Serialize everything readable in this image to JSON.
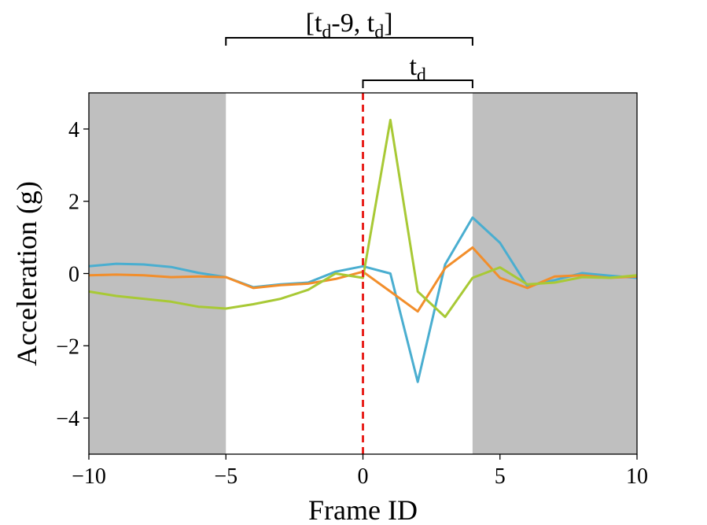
{
  "chart_data": {
    "type": "line",
    "xlabel": "Frame ID",
    "ylabel": "Acceleration (g)",
    "xlim": [
      -10,
      10
    ],
    "ylim": [
      -5,
      5
    ],
    "xticks": [
      -10,
      -5,
      0,
      5,
      10
    ],
    "yticks": [
      -4,
      -2,
      0,
      2,
      4
    ],
    "tick_labels_x": [
      "−10",
      "−5",
      "0",
      "5",
      "10"
    ],
    "tick_labels_y": [
      "−4",
      "−2",
      "0",
      "2",
      "4"
    ],
    "grid": false,
    "shaded_regions": [
      {
        "from": -10,
        "to": -5,
        "color": "#bfbfbf"
      },
      {
        "from": 4,
        "to": 10,
        "color": "#bfbfbf"
      }
    ],
    "vline": {
      "x": 0,
      "color": "#e8231f",
      "style": "dashed"
    },
    "brackets": [
      {
        "from": -5,
        "to": 4,
        "label_main": "[t",
        "label_sub": "d",
        "label_mid": "-9, t",
        "label_sub2": "d",
        "label_end": "]"
      },
      {
        "from": 0,
        "to": 4,
        "label_main": "t",
        "label_sub": "d",
        "label_mid": "",
        "label_sub2": "",
        "label_end": ""
      }
    ],
    "x": [
      -10,
      -9,
      -8,
      -7,
      -6,
      -5,
      -4,
      -3,
      -2,
      -1,
      0,
      1,
      2,
      3,
      4,
      5,
      6,
      7,
      8,
      9,
      10
    ],
    "series": [
      {
        "color": "#4aaed0",
        "values": [
          0.2,
          0.27,
          0.25,
          0.18,
          0.02,
          -0.1,
          -0.38,
          -0.3,
          -0.25,
          0.05,
          0.2,
          0.0,
          -3.0,
          0.25,
          1.55,
          0.85,
          -0.35,
          -0.18,
          0.01,
          -0.06,
          -0.12
        ]
      },
      {
        "color": "#f28e2b",
        "values": [
          -0.05,
          -0.03,
          -0.05,
          -0.1,
          -0.08,
          -0.1,
          -0.4,
          -0.32,
          -0.28,
          -0.15,
          0.05,
          -0.5,
          -1.05,
          0.15,
          0.72,
          -0.12,
          -0.4,
          -0.08,
          -0.05,
          -0.12,
          -0.08
        ]
      },
      {
        "color": "#a8c935",
        "values": [
          -0.5,
          -0.62,
          -0.7,
          -0.78,
          -0.92,
          -0.97,
          -0.85,
          -0.7,
          -0.45,
          0.0,
          -0.12,
          4.25,
          -0.5,
          -1.2,
          -0.12,
          0.17,
          -0.3,
          -0.25,
          -0.1,
          -0.12,
          -0.05
        ]
      }
    ]
  }
}
